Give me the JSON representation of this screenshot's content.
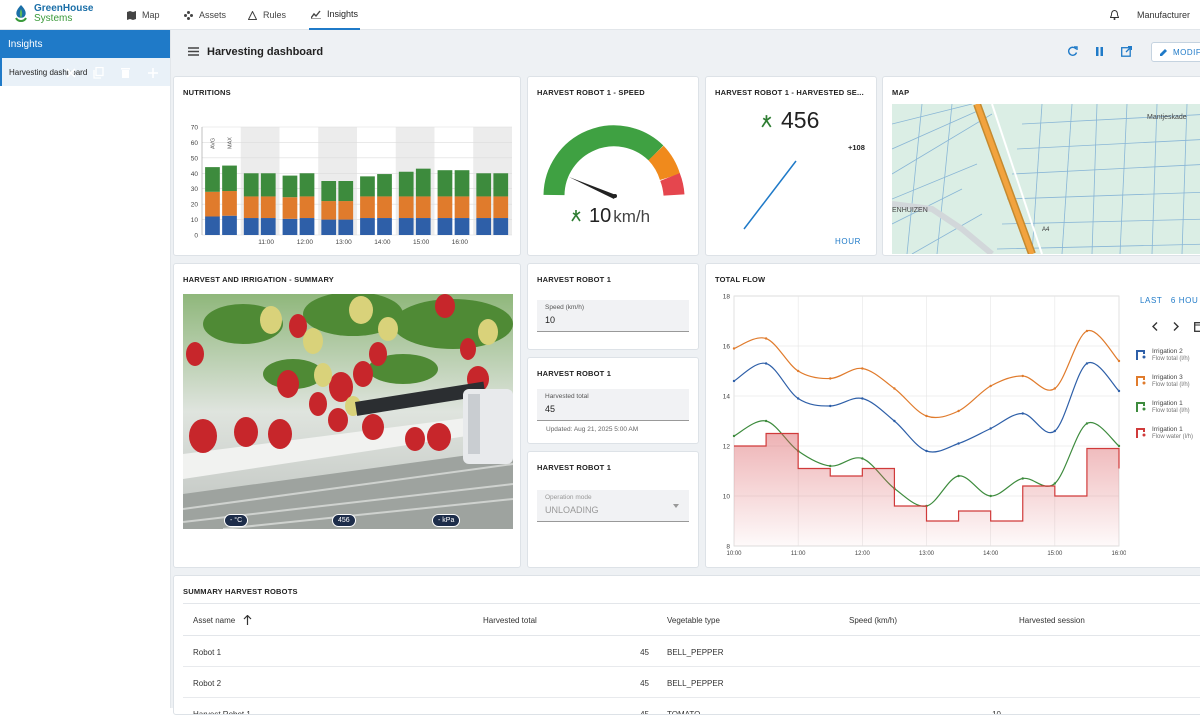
{
  "app": {
    "logo_line1": "GreenHouse",
    "logo_line2": "Systems",
    "user": "Manufacturer"
  },
  "nav": [
    {
      "label": "Map",
      "icon": "map-icon"
    },
    {
      "label": "Assets",
      "icon": "assets-icon"
    },
    {
      "label": "Rules",
      "icon": "rules-icon"
    },
    {
      "label": "Insights",
      "icon": "insights-icon"
    }
  ],
  "sidebar": {
    "title": "Insights",
    "items": [
      {
        "label": "Harvesting dashboard"
      }
    ]
  },
  "dashboard": {
    "title": "Harvesting dashboard",
    "modify_label": "MODIF"
  },
  "nutritions": {
    "title": "NUTRITIONS"
  },
  "speed": {
    "title": "HARVEST ROBOT 1 - SPEED",
    "value": "10",
    "unit": "km/h",
    "gauge_fraction": 0.1
  },
  "harvested": {
    "title": "HARVEST ROBOT 1 - HARVESTED SE...",
    "value": "456",
    "delta": "+108",
    "period": "HOUR"
  },
  "map": {
    "title": "MAP",
    "labels": [
      "Mantjeskade",
      "ENHUIZEN",
      "A4"
    ]
  },
  "summary": {
    "title": "HARVEST AND IRRIGATION - SUMMARY",
    "badges": [
      "- °C",
      "456",
      "- kPa"
    ]
  },
  "robot_speed": {
    "title": "HARVEST ROBOT 1",
    "label": "Speed (km/h)",
    "value": "10"
  },
  "robot_total": {
    "title": "HARVEST ROBOT 1",
    "label": "Harvested total",
    "value": "45",
    "updated": "Updated: Aug 21, 2025 5:00 AM"
  },
  "robot_mode": {
    "title": "HARVEST ROBOT 1",
    "label": "Operation mode",
    "value": "UNLOADING"
  },
  "flow": {
    "title": "TOTAL FLOW",
    "last_label": "LAST",
    "range_label": "6 HOU"
  },
  "table": {
    "title": "SUMMARY HARVEST ROBOTS",
    "headers": [
      "Asset name",
      "Harvested total",
      "Vegetable type",
      "Speed (km/h)",
      "Harvested session"
    ],
    "rows": [
      [
        "Robot 1",
        "45",
        "BELL_PEPPER",
        "",
        ""
      ],
      [
        "Robot 2",
        "45",
        "BELL_PEPPER",
        "",
        ""
      ],
      [
        "Harvest Robot 1",
        "45",
        "TOMATO",
        "10",
        ""
      ]
    ]
  },
  "chart_data": [
    {
      "type": "bar",
      "title": "NUTRITIONS",
      "ylim": [
        0,
        70
      ],
      "yticks": [
        0,
        10,
        20,
        30,
        40,
        50,
        60,
        70
      ],
      "xticks": [
        "11:00",
        "12:00",
        "13:00",
        "14:00",
        "15:00",
        "16:00"
      ],
      "annotations": [
        "AVG",
        "MAX"
      ],
      "series": [
        {
          "color": "#2e5fa8",
          "values": [
            12,
            12.5,
            11,
            11,
            10.5,
            11,
            10,
            10,
            11,
            11,
            11,
            11,
            11,
            11,
            11,
            11
          ]
        },
        {
          "color": "#e07b2c",
          "values": [
            16,
            16,
            14,
            14,
            14,
            14,
            12,
            12,
            14,
            14,
            14,
            14,
            14,
            14,
            14,
            14
          ]
        },
        {
          "color": "#3d8b3d",
          "values": [
            16,
            16.5,
            15,
            15,
            14,
            15,
            13,
            13,
            13,
            14.5,
            16,
            18,
            17,
            17,
            15,
            15
          ]
        }
      ]
    },
    {
      "type": "line",
      "title": "TOTAL FLOW",
      "ylim": [
        8,
        18
      ],
      "yticks": [
        8,
        10,
        12,
        14,
        16,
        18
      ],
      "xticks": [
        "10:00",
        "11:00",
        "12:00",
        "13:00",
        "14:00",
        "15:00",
        "16:00"
      ],
      "legend": [
        {
          "name": "Irrigation 2",
          "sub": "Flow total (l/h)",
          "color": "#2e5fa8"
        },
        {
          "name": "Irrigation 3",
          "sub": "Flow total (l/h)",
          "color": "#e07b2c"
        },
        {
          "name": "Irrigation 1",
          "sub": "Flow total (l/h)",
          "color": "#3d8b3d"
        },
        {
          "name": "Irrigation 1",
          "sub": "Flow water (l/h)",
          "color": "#d03a3a"
        }
      ],
      "series": [
        {
          "color": "#e07b2c",
          "x": [
            0,
            0.5,
            1,
            1.5,
            2,
            2.5,
            3,
            3.5,
            4,
            4.5,
            5,
            5.5,
            6
          ],
          "y": [
            15.9,
            16.3,
            15.0,
            14.7,
            15.1,
            14.3,
            13.2,
            13.4,
            14.4,
            14.8,
            14.3,
            16.6,
            15.4
          ]
        },
        {
          "color": "#2e5fa8",
          "x": [
            0,
            0.5,
            1,
            1.5,
            2,
            2.5,
            3,
            3.5,
            4,
            4.5,
            5,
            5.5,
            6
          ],
          "y": [
            14.6,
            15.3,
            13.9,
            13.6,
            13.9,
            13.0,
            11.8,
            12.1,
            12.7,
            13.3,
            12.6,
            15.3,
            14.2
          ]
        },
        {
          "color": "#3d8b3d",
          "x": [
            0,
            0.5,
            1,
            1.5,
            2,
            2.5,
            3,
            3.5,
            4,
            4.5,
            5,
            5.5,
            6
          ],
          "y": [
            12.4,
            13.0,
            11.8,
            11.2,
            11.5,
            10.3,
            9.6,
            10.8,
            10.0,
            10.7,
            10.5,
            12.9,
            12.0
          ]
        },
        {
          "color": "#d03a3a",
          "type": "step",
          "x": [
            0,
            0.5,
            1,
            1.5,
            2,
            2.5,
            3,
            3.5,
            4,
            4.5,
            5,
            5.5,
            6
          ],
          "y": [
            12.0,
            12.5,
            11.1,
            10.8,
            11.1,
            9.6,
            9.0,
            9.4,
            9.0,
            10.4,
            10.0,
            11.9,
            11.1
          ]
        }
      ]
    }
  ]
}
